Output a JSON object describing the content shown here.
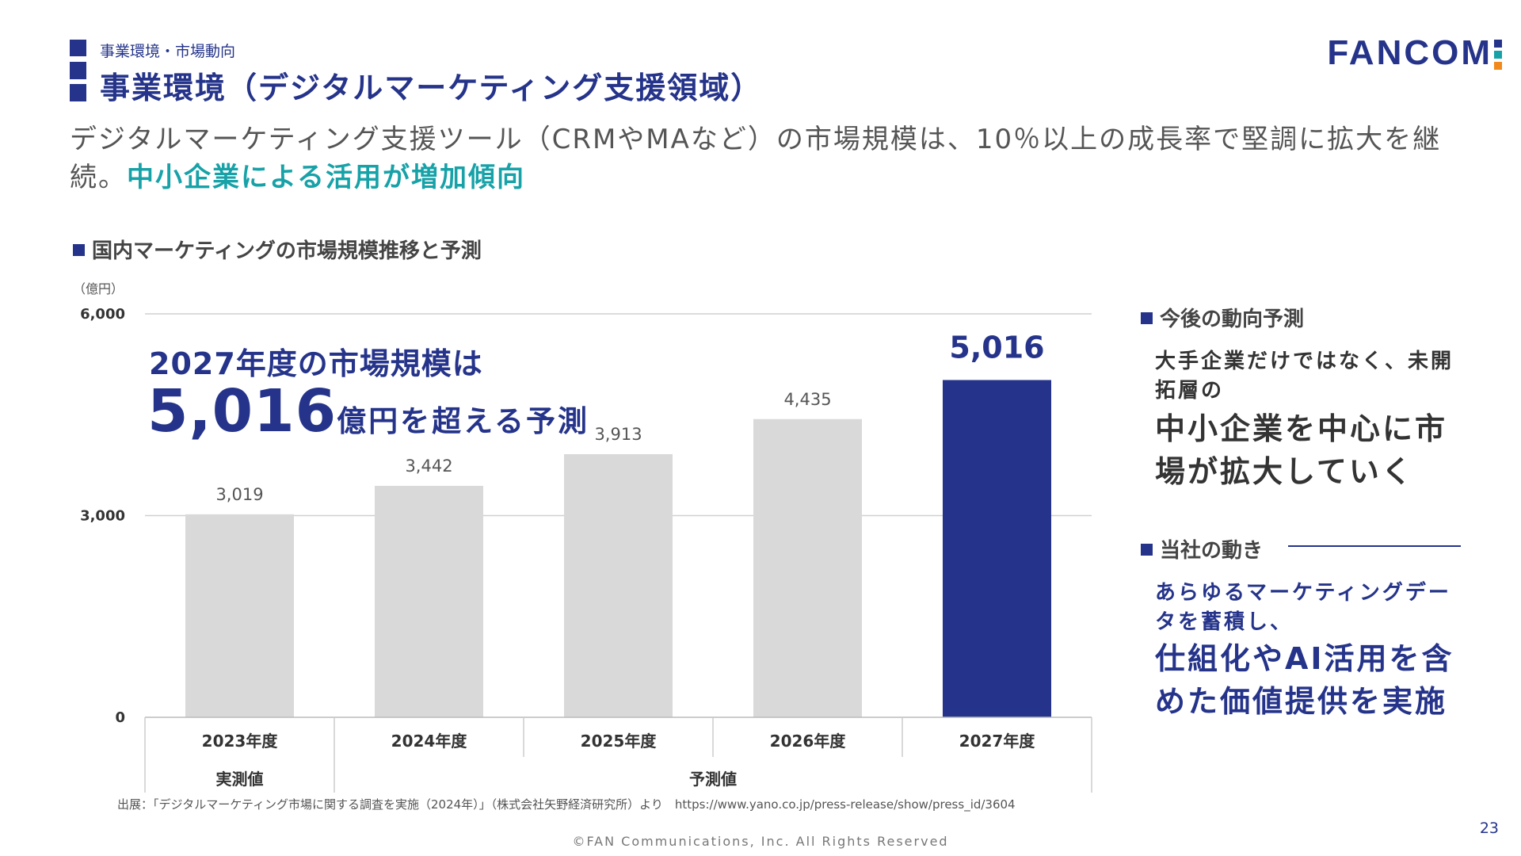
{
  "header": {
    "breadcrumb": "事業環境・市場動向",
    "title": "事業環境（デジタルマーケティング支援領域）",
    "logo_text": "FANCOM",
    "accent_color": "#25348a"
  },
  "lead": {
    "text_normal": "デジタルマーケティング支援ツール（CRMやMAなど）の市場規模は、10％以上の成長率で堅調に拡大を継続。",
    "text_highlight": "中小企業による活用が増加傾向",
    "highlight_color": "#17a2a8"
  },
  "chart_section": {
    "title": "国内マーケティングの市場規模推移と予測"
  },
  "chart_data": {
    "type": "bar",
    "title": "国内マーケティングの市場規模推移と予測",
    "unit_label": "（億円）",
    "categories": [
      "2023年度",
      "2024年度",
      "2025年度",
      "2026年度",
      "2027年度"
    ],
    "values": [
      3019,
      3442,
      3913,
      4435,
      5016
    ],
    "value_labels": [
      "3,019",
      "3,442",
      "3,913",
      "4,435",
      "5,016"
    ],
    "highlight_index": 4,
    "ylim": [
      0,
      6000
    ],
    "yticks": [
      0,
      3000,
      6000
    ],
    "ytick_labels": [
      "0",
      "3,000",
      "6,000"
    ],
    "groups": [
      {
        "label": "実測値",
        "categories": 1
      },
      {
        "label": "予測値",
        "categories": 4
      }
    ],
    "bar_color": "#d9d9d9",
    "highlight_color": "#25348a"
  },
  "callout": {
    "line1": "2027年度の市場規模は",
    "big_value": "5,016",
    "suffix": "億円を超える予測"
  },
  "side": {
    "trend_heading": "今後の動向予測",
    "trend_small": "大手企業だけではなく、未開拓層の",
    "trend_big": "中小企業を中心に市場が拡大していく",
    "company_heading": "当社の動き",
    "company_small": "あらゆるマーケティングデータを蓄積し、",
    "company_big": "仕組化やAI活用を含めた価値提供を実施"
  },
  "footer": {
    "source": "出展：「デジタルマーケティング市場に関する調査を実施（2024年）」（株式会社矢野経済研究所）より　https://www.yano.co.jp/press-release/show/press_id/3604",
    "copyright": "©FAN Communications, Inc. All Rights Reserved",
    "page_number": "23"
  }
}
